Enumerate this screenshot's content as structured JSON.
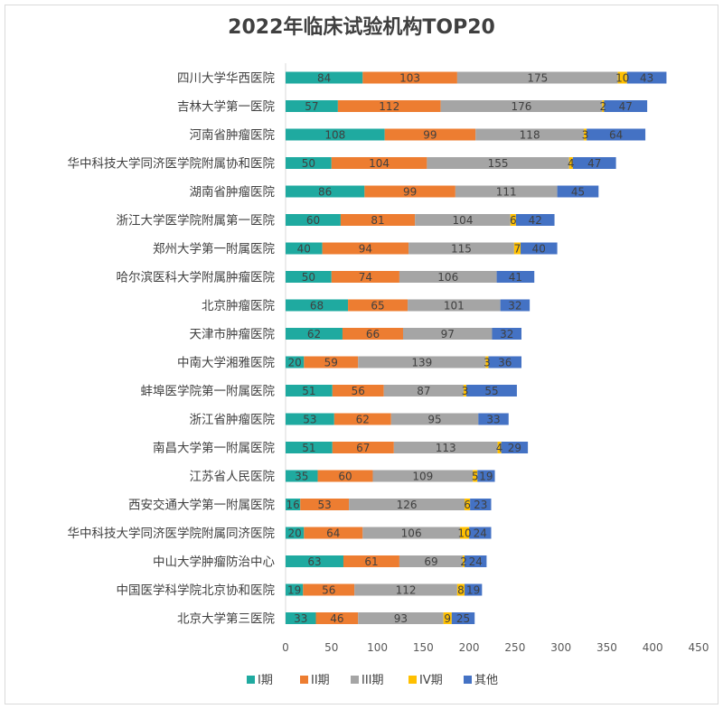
{
  "chart_data": {
    "type": "bar",
    "orientation": "horizontal",
    "stacked": true,
    "title": "2022年临床试验机构TOP20",
    "xlim": [
      0,
      450
    ],
    "xticks": [
      0,
      50,
      100,
      150,
      200,
      250,
      300,
      350,
      400,
      450
    ],
    "grid": false,
    "legend_position": "bottom",
    "categories": [
      "四川大学华西医院",
      "吉林大学第一医院",
      "河南省肿瘤医院",
      "华中科技大学同济医学院附属协和医院",
      "湖南省肿瘤医院",
      "浙江大学医学院附属第一医院",
      "郑州大学第一附属医院",
      "哈尔滨医科大学附属肿瘤医院",
      "北京肿瘤医院",
      "天津市肿瘤医院",
      "中南大学湘雅医院",
      "蚌埠医学院第一附属医院",
      "浙江省肿瘤医院",
      "南昌大学第一附属医院",
      "江苏省人民医院",
      "西安交通大学第一附属医院",
      "华中科技大学同济医学院附属同济医院",
      "中山大学肿瘤防治中心",
      "中国医学科学院北京协和医院",
      "北京大学第三医院"
    ],
    "series": [
      {
        "name": "I期",
        "color": "#1faaa0",
        "values": [
          84,
          57,
          108,
          50,
          86,
          60,
          40,
          50,
          68,
          62,
          20,
          51,
          53,
          51,
          35,
          16,
          20,
          63,
          19,
          33
        ]
      },
      {
        "name": "II期",
        "color": "#ed7d31",
        "values": [
          103,
          112,
          99,
          104,
          99,
          81,
          94,
          74,
          65,
          66,
          59,
          56,
          62,
          67,
          60,
          53,
          64,
          61,
          56,
          46
        ]
      },
      {
        "name": "III期",
        "color": "#a5a5a5",
        "values": [
          175,
          176,
          118,
          155,
          111,
          104,
          115,
          106,
          101,
          97,
          139,
          87,
          95,
          113,
          109,
          126,
          106,
          69,
          112,
          93
        ]
      },
      {
        "name": "IV期",
        "color": "#ffc000",
        "values": [
          10,
          2,
          3,
          4,
          0,
          6,
          7,
          0,
          0,
          0,
          3,
          3,
          0,
          4,
          5,
          6,
          10,
          2,
          8,
          9
        ]
      },
      {
        "name": "其他",
        "color": "#4472c4",
        "values": [
          43,
          47,
          64,
          47,
          45,
          42,
          40,
          41,
          32,
          32,
          36,
          55,
          33,
          29,
          19,
          23,
          24,
          24,
          19,
          25
        ]
      }
    ]
  }
}
